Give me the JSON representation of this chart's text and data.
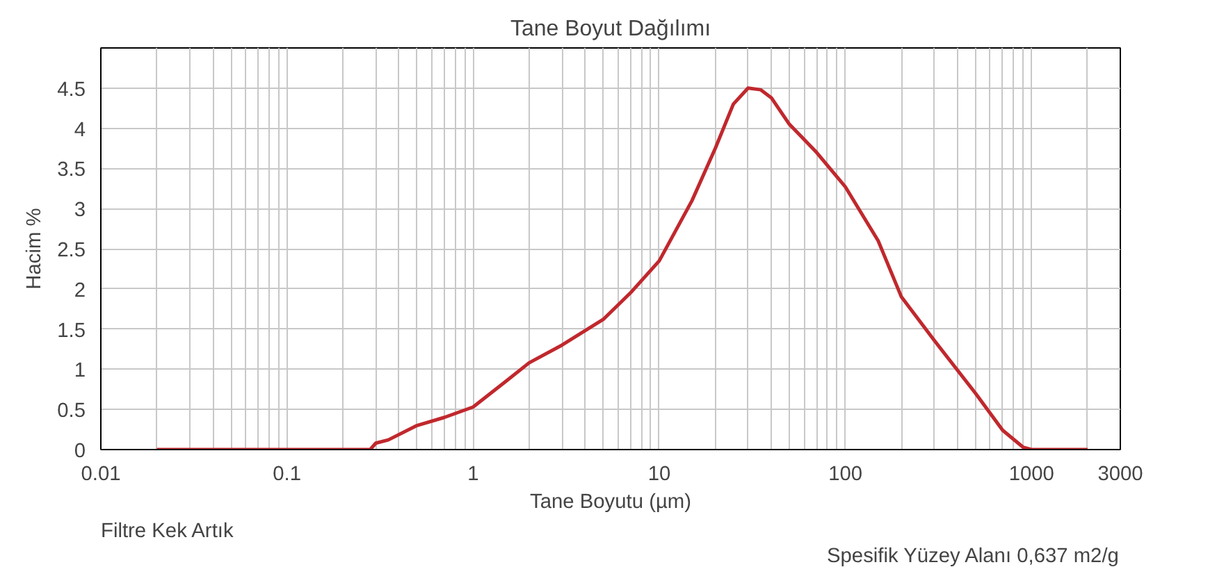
{
  "chart_data": {
    "type": "line",
    "title": "Tane Boyut Dağılımı",
    "xlabel": "Tane Boyutu (µm)",
    "ylabel": "Hacim %",
    "annotations": [
      "Filtre Kek Artık",
      "Spesifik Yüzey Alanı 0,637 m2/g"
    ],
    "log": "x",
    "grid": true,
    "marker": "none",
    "line_style": "solid",
    "xlim": [
      0.01,
      3000
    ],
    "xticks": [
      0.01,
      0.1,
      1,
      10,
      100,
      1000,
      3000
    ],
    "ylim": [
      0,
      5
    ],
    "yticks": [
      0,
      0.5,
      1,
      1.5,
      2,
      2.5,
      3,
      3.5,
      4,
      4.5
    ],
    "series": [
      {
        "color": "#c0282d",
        "x": [
          0.02,
          0.05,
          0.1,
          0.2,
          0.28,
          0.3,
          0.35,
          0.5,
          0.7,
          1,
          1.5,
          2,
          3,
          5,
          7,
          10,
          15,
          20,
          25,
          30,
          35,
          40,
          50,
          70,
          100,
          150,
          200,
          300,
          500,
          700,
          900,
          1000,
          2000
        ],
        "values": [
          0,
          0,
          0,
          0,
          0,
          0.08,
          0.12,
          0.3,
          0.4,
          0.53,
          0.85,
          1.08,
          1.3,
          1.62,
          1.95,
          2.35,
          3.1,
          3.75,
          4.3,
          4.5,
          4.48,
          4.38,
          4.05,
          3.7,
          3.27,
          2.6,
          1.9,
          1.36,
          0.7,
          0.24,
          0.03,
          0,
          0
        ]
      }
    ]
  }
}
